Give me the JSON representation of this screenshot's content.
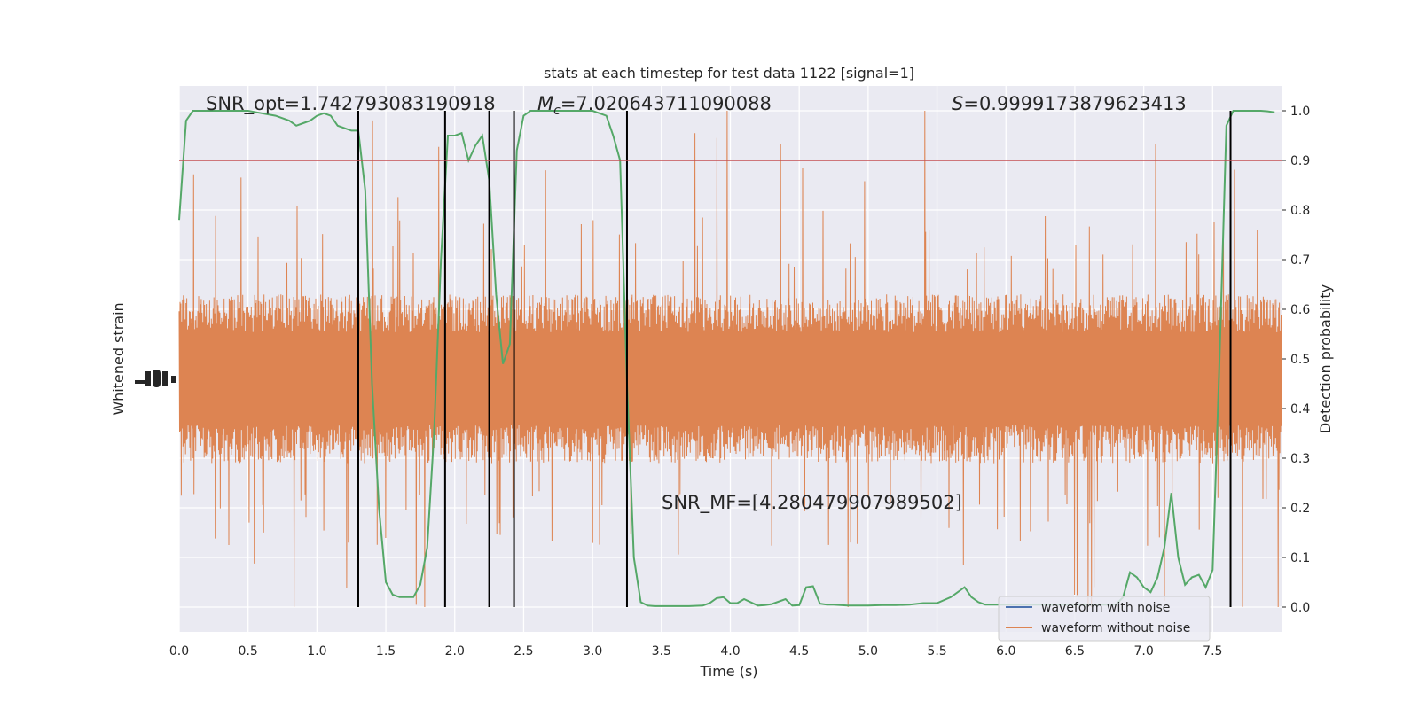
{
  "chart_data": {
    "type": "line",
    "title": "stats at each timestep for test data 1122 [signal=1]",
    "xlabel": "Time (s)",
    "ylabel_left": "Whitened strain",
    "ylabel_right": "Detection probability",
    "xlim": [
      0.0,
      8.0
    ],
    "ylim_right": [
      -0.05,
      1.05
    ],
    "xticks": [
      "0.0",
      "0.5",
      "1.0",
      "1.5",
      "2.0",
      "2.5",
      "3.0",
      "3.5",
      "4.0",
      "4.5",
      "5.0",
      "5.5",
      "6.0",
      "6.5",
      "7.0",
      "7.5"
    ],
    "yticks_right": [
      "0.0",
      "0.1",
      "0.2",
      "0.3",
      "0.4",
      "0.5",
      "0.6",
      "0.7",
      "0.8",
      "0.9",
      "1.0"
    ],
    "grid": true,
    "threshold": 0.9,
    "annotations": {
      "snr_opt": "SNR_opt=1.742793083190918",
      "mc_symbol": "M",
      "mc_sub": "c",
      "mc_value": "=7.020643711090088",
      "s_symbol": "S",
      "s_value": "=0.9999173879623413",
      "snr_mf": "SNR_MF=[4.280479907989502]"
    },
    "vertical_lines_x": [
      1.3,
      1.93,
      2.25,
      2.43,
      3.25,
      7.63
    ],
    "series": [
      {
        "name": "waveform with noise",
        "color": "#4c72b0",
        "kind": "strain"
      },
      {
        "name": "waveform without noise",
        "color": "#dd8452",
        "kind": "strain",
        "y_center": 0.46,
        "y_bulk": 0.17,
        "y_max_spike": 1.0,
        "y_min_spike": 0.0
      },
      {
        "name": "detection probability",
        "color": "#55a868",
        "kind": "probability",
        "x": [
          0.0,
          0.05,
          0.1,
          0.15,
          0.2,
          0.3,
          0.4,
          0.5,
          0.6,
          0.7,
          0.8,
          0.85,
          0.9,
          0.95,
          1.0,
          1.05,
          1.1,
          1.15,
          1.2,
          1.25,
          1.3,
          1.35,
          1.4,
          1.45,
          1.5,
          1.55,
          1.6,
          1.7,
          1.75,
          1.8,
          1.85,
          1.9,
          1.95,
          2.0,
          2.05,
          2.1,
          2.15,
          2.2,
          2.25,
          2.3,
          2.35,
          2.4,
          2.45,
          2.5,
          2.55,
          2.6,
          2.7,
          2.8,
          2.9,
          3.0,
          3.1,
          3.15,
          3.2,
          3.25,
          3.3,
          3.35,
          3.4,
          3.45,
          3.5,
          3.6,
          3.7,
          3.8,
          3.85,
          3.9,
          3.95,
          4.0,
          4.05,
          4.1,
          4.2,
          4.25,
          4.3,
          4.4,
          4.45,
          4.5,
          4.55,
          4.6,
          4.65,
          4.7,
          4.75,
          4.8,
          4.85,
          4.9,
          5.0,
          5.1,
          5.2,
          5.3,
          5.4,
          5.5,
          5.6,
          5.7,
          5.75,
          5.8,
          5.85,
          5.9,
          6.0,
          6.1,
          6.2,
          6.3,
          6.4,
          6.5,
          6.6,
          6.7,
          6.8,
          6.85,
          6.9,
          6.95,
          7.0,
          7.05,
          7.1,
          7.15,
          7.2,
          7.25,
          7.3,
          7.35,
          7.4,
          7.45,
          7.5,
          7.55,
          7.6,
          7.65,
          7.7,
          7.75,
          7.8,
          7.85,
          7.9,
          7.95
        ],
        "y": [
          0.78,
          0.98,
          1.0,
          1.0,
          1.0,
          1.0,
          1.0,
          1.0,
          0.995,
          0.99,
          0.98,
          0.97,
          0.975,
          0.98,
          0.99,
          0.995,
          0.99,
          0.97,
          0.965,
          0.96,
          0.96,
          0.84,
          0.45,
          0.2,
          0.05,
          0.025,
          0.02,
          0.02,
          0.045,
          0.12,
          0.35,
          0.7,
          0.95,
          0.95,
          0.955,
          0.9,
          0.93,
          0.95,
          0.86,
          0.63,
          0.49,
          0.53,
          0.92,
          0.99,
          1.0,
          1.0,
          1.0,
          1.0,
          1.0,
          1.0,
          0.99,
          0.95,
          0.9,
          0.45,
          0.1,
          0.01,
          0.003,
          0.002,
          0.002,
          0.002,
          0.002,
          0.003,
          0.008,
          0.018,
          0.02,
          0.008,
          0.008,
          0.016,
          0.003,
          0.004,
          0.006,
          0.016,
          0.003,
          0.004,
          0.04,
          0.042,
          0.007,
          0.005,
          0.005,
          0.004,
          0.003,
          0.003,
          0.003,
          0.004,
          0.004,
          0.005,
          0.008,
          0.008,
          0.02,
          0.04,
          0.02,
          0.01,
          0.005,
          0.005,
          0.005,
          0.005,
          0.005,
          0.005,
          0.005,
          0.005,
          0.005,
          0.005,
          0.005,
          0.02,
          0.07,
          0.06,
          0.04,
          0.03,
          0.06,
          0.12,
          0.23,
          0.1,
          0.045,
          0.06,
          0.065,
          0.04,
          0.075,
          0.5,
          0.97,
          1.0,
          1.0,
          1.0,
          1.0,
          1.0,
          0.999,
          0.997
        ]
      }
    ],
    "legend_placement": "lower-right"
  }
}
